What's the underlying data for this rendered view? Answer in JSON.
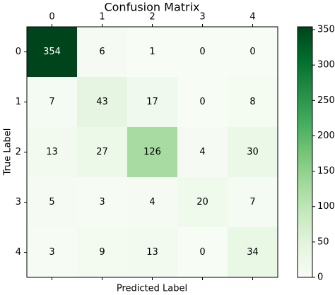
{
  "chart_data": {
    "type": "heatmap",
    "title": "Confusion Matrix",
    "x_label": "Predicted Label",
    "y_label": "True Label",
    "x_categories": [
      "0",
      "1",
      "2",
      "3",
      "4"
    ],
    "y_categories": [
      "0",
      "1",
      "2",
      "3",
      "4"
    ],
    "values": [
      [
        354,
        6,
        1,
        0,
        0
      ],
      [
        7,
        43,
        17,
        0,
        8
      ],
      [
        13,
        27,
        126,
        4,
        30
      ],
      [
        5,
        3,
        4,
        20,
        7
      ],
      [
        3,
        9,
        13,
        0,
        34
      ]
    ],
    "colormap": [
      "#f7fcf5",
      "#e5f5e0",
      "#c7e9c0",
      "#a1d99b",
      "#74c476",
      "#41ab5d",
      "#238b45",
      "#006d2c",
      "#00441b"
    ],
    "clim": [
      0,
      354
    ],
    "cticks": [
      0,
      50,
      100,
      150,
      200,
      250,
      300,
      350
    ]
  }
}
